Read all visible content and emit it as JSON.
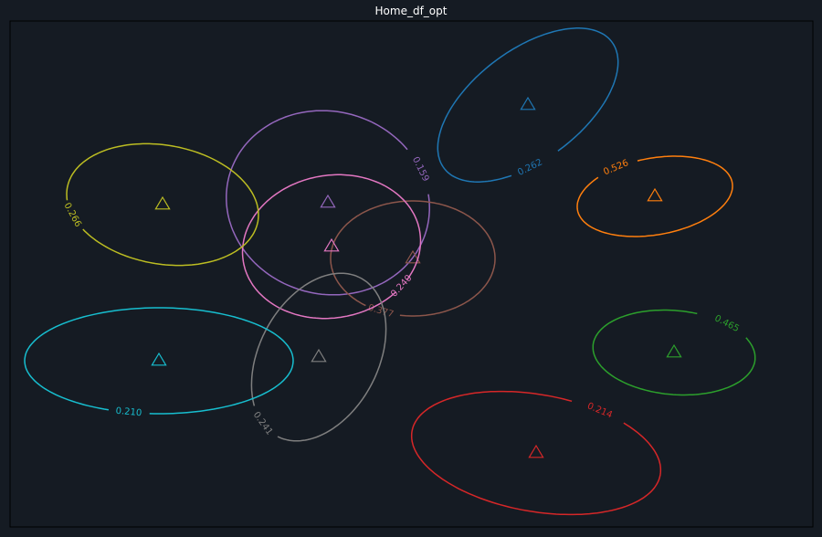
{
  "chart_data": {
    "type": "contour",
    "title": "Home_df_opt",
    "xlabel": "",
    "ylabel": "",
    "grid": false,
    "axes_frame": true,
    "colors": {
      "background": "#151b23",
      "frame": "#000000",
      "title": "#ffffff"
    },
    "series": [
      {
        "color": "#1f77b4",
        "level_label": "0.262",
        "marker": "triangle",
        "center": [
          578,
          115
        ],
        "rx": 115,
        "ry": 60,
        "rotation": -37,
        "gap_start": 92,
        "gap_end": 122,
        "label_angle": 110
      },
      {
        "color": "#ff7f0e",
        "level_label": "0.526",
        "marker": "triangle",
        "center": [
          717,
          215
        ],
        "rx": 86,
        "ry": 42,
        "rotation": -10,
        "gap_start": 228,
        "gap_end": 262,
        "label_angle": 245
      },
      {
        "color": "#2ca02c",
        "level_label": "0.465",
        "marker": "triangle",
        "center": [
          738,
          386
        ],
        "rx": 89,
        "ry": 46,
        "rotation": 5,
        "gap_start": 285,
        "gap_end": 330,
        "label_angle": 308
      },
      {
        "color": "#d62728",
        "level_label": "0.214",
        "marker": "triangle",
        "center": [
          587,
          496
        ],
        "rx": 138,
        "ry": 64,
        "rotation": 10,
        "gap_start": 282,
        "gap_end": 310,
        "label_angle": 296
      },
      {
        "color": "#9467bd",
        "level_label": "0.159",
        "marker": "triangle",
        "center": [
          359,
          222
        ],
        "rx": 112,
        "ry": 100,
        "rotation": 15,
        "gap_start": 308,
        "gap_end": 338,
        "label_angle": 322
      },
      {
        "color": "#8c564b",
        "level_label": "0.377",
        "marker": "triangle",
        "center": [
          452,
          283
        ],
        "rx": 90,
        "ry": 63,
        "rotation": 0,
        "gap_start": 100,
        "gap_end": 125,
        "label_angle": 113
      },
      {
        "color": "#e377c2",
        "level_label": "0.240",
        "marker": "triangle",
        "center": [
          363,
          270
        ],
        "rx": 98,
        "ry": 78,
        "rotation": -10,
        "gap_start": 40,
        "gap_end": 52,
        "label_angle": 46
      },
      {
        "color": "#7f7f7f",
        "level_label": "0.241",
        "marker": "triangle",
        "center": [
          349,
          391
        ],
        "rx": 98,
        "ry": 65,
        "rotation": -62,
        "gap_start": 180,
        "gap_end": 215,
        "label_angle": 198
      },
      {
        "color": "#bcbd22",
        "level_label": "0.266",
        "marker": "triangle",
        "center": [
          178,
          224
        ],
        "rx": 106,
        "ry": 65,
        "rotation": 10,
        "gap_start": 140,
        "gap_end": 168,
        "label_angle": 154
      },
      {
        "color": "#17becf",
        "level_label": "0.210",
        "marker": "triangle",
        "center": [
          174,
          395
        ],
        "rx": 147,
        "ry": 58,
        "rotation": 0,
        "gap_start": 95,
        "gap_end": 112,
        "label_angle": 103
      }
    ]
  }
}
